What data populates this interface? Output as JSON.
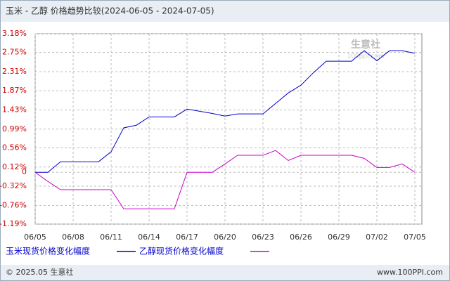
{
  "chart_data": {
    "type": "line",
    "title": "玉米 - 乙醇 价格趋势比较(2024-06-05 - 2024-07-05)",
    "categories": [
      "06/05",
      null,
      null,
      "06/08",
      null,
      null,
      "06/11",
      null,
      null,
      "06/14",
      null,
      null,
      "06/17",
      null,
      null,
      "06/20",
      null,
      null,
      "06/23",
      null,
      null,
      "06/26",
      null,
      null,
      "06/29",
      null,
      null,
      "07/02",
      null,
      null,
      "07/05"
    ],
    "series": [
      {
        "name": "玉米现货价格变化幅度",
        "color": "#0000cc",
        "values": [
          0,
          0,
          0.24,
          0.24,
          0.24,
          0.24,
          0.47,
          1.02,
          1.08,
          1.27,
          1.27,
          1.27,
          1.45,
          1.4,
          1.35,
          1.29,
          1.34,
          1.34,
          1.34,
          1.58,
          1.82,
          2.0,
          2.29,
          2.55,
          2.55,
          2.55,
          2.79,
          2.56,
          2.79,
          2.79,
          2.73
        ]
      },
      {
        "name": "乙醇现货价格变化幅度",
        "color": "#cc00cc",
        "values": [
          0,
          -0.21,
          -0.4,
          -0.4,
          -0.4,
          -0.4,
          -0.4,
          -0.84,
          -0.84,
          -0.84,
          -0.84,
          -0.84,
          0,
          0,
          0,
          0.19,
          0.39,
          0.39,
          0.39,
          0.5,
          0.27,
          0.39,
          0.39,
          0.39,
          0.39,
          0.39,
          0.32,
          0.11,
          0.11,
          0.19,
          0
        ]
      }
    ],
    "ylim": [
      -1.19,
      3.18
    ],
    "yticks": [
      {
        "value": 3.18,
        "label": "3.18%"
      },
      {
        "value": 2.75,
        "label": "2.75%"
      },
      {
        "value": 2.31,
        "label": "2.31%"
      },
      {
        "value": 1.87,
        "label": "1.87%"
      },
      {
        "value": 1.43,
        "label": "1.43%"
      },
      {
        "value": 0.99,
        "label": "0.99%"
      },
      {
        "value": 0.56,
        "label": "0.56%"
      },
      {
        "value": 0.12,
        "label": "0.12%"
      },
      0,
      {
        "value": -0.32,
        "label": "-0.32%"
      },
      {
        "value": -0.76,
        "label": "-0.76%"
      },
      {
        "value": -1.19,
        "label": "-1.19%"
      }
    ],
    "grid": true,
    "watermark": [
      "生意社",
      "100ppi.com"
    ],
    "footer": {
      "left": "© 2025.05 生意社",
      "right": "www.100PPI.com"
    }
  }
}
